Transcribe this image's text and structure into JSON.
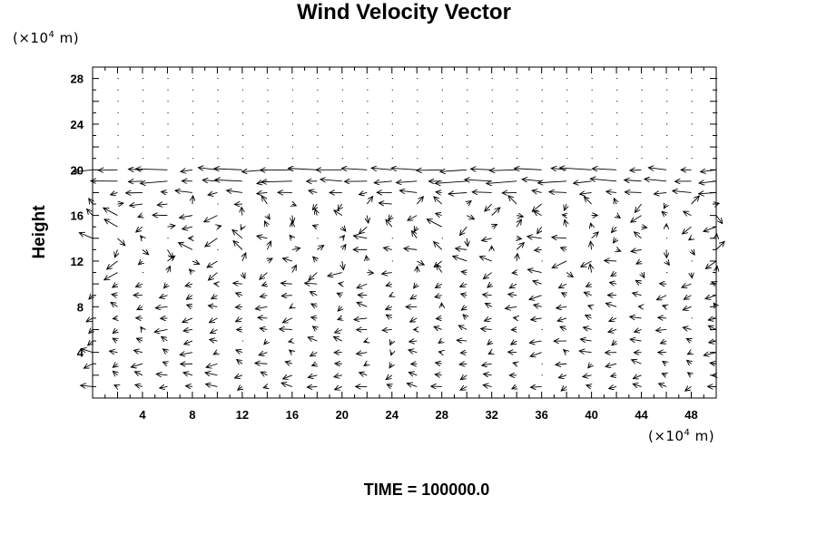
{
  "chart_data": {
    "type": "quiver",
    "title": "Wind Velocity Vector",
    "ylabel": "Height",
    "y_unit": "(×10",
    "x_unit": "(×10",
    "unit_exponent": "4",
    "unit_suffix": " m)",
    "footer": "TIME = 100000.0",
    "xlim": [
      0,
      50
    ],
    "ylim": [
      0,
      29
    ],
    "xticks": [
      4,
      8,
      12,
      16,
      20,
      24,
      28,
      32,
      36,
      40,
      44,
      48
    ],
    "yticks": [
      4,
      8,
      12,
      16,
      20,
      24,
      28
    ],
    "grid_x": [
      0,
      2,
      4,
      6,
      8,
      10,
      12,
      14,
      16,
      18,
      20,
      22,
      24,
      26,
      28,
      30,
      32,
      34,
      36,
      38,
      40,
      42,
      44,
      46,
      48,
      50
    ],
    "grid_y": [
      1,
      2,
      3,
      4,
      5,
      6,
      7,
      8,
      9,
      10,
      11,
      12,
      13,
      14,
      15,
      16,
      17,
      18,
      19,
      20,
      21,
      22,
      23,
      24,
      25,
      26,
      27,
      28
    ],
    "vector_scale_note": "arrow length proportional to speed"
  }
}
